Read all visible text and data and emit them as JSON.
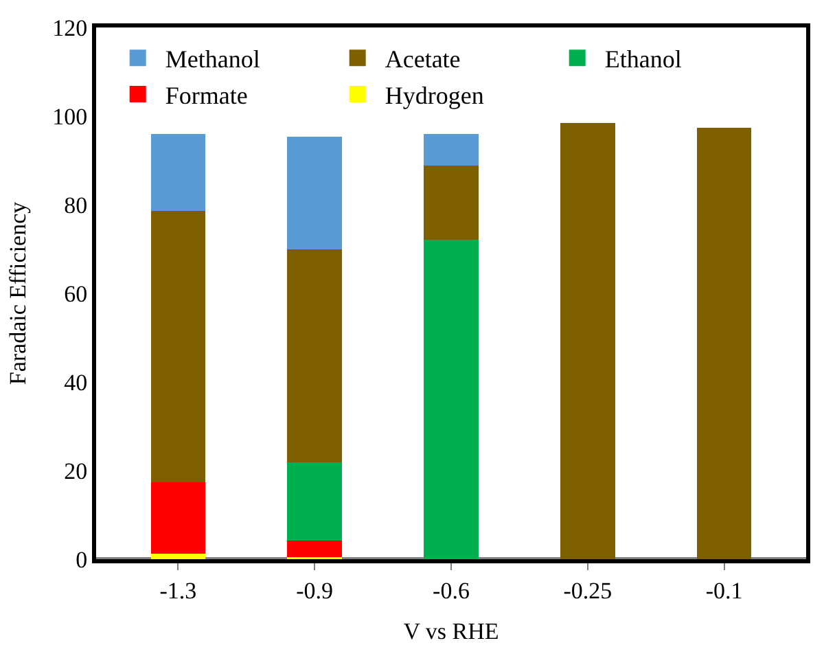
{
  "chart_data": {
    "type": "bar",
    "stacked": true,
    "xlabel": "V vs RHE",
    "ylabel": "Faradaic Efficiency",
    "categories": [
      "-1.3",
      "-0.9",
      "-0.6",
      "-0.25",
      "-0.1"
    ],
    "series": [
      {
        "name": "Hydrogen",
        "color": "#ffff00",
        "values": [
          1.2,
          0.5,
          0,
          0,
          0
        ]
      },
      {
        "name": "Formate",
        "color": "#ff0000",
        "values": [
          16.2,
          3.7,
          0,
          0,
          0
        ]
      },
      {
        "name": "Ethanol",
        "color": "#00b050",
        "values": [
          0,
          17.6,
          72.1,
          0,
          0
        ]
      },
      {
        "name": "Acetate",
        "color": "#7f6000",
        "values": [
          61.2,
          48.2,
          16.8,
          98.5,
          97.3
        ]
      },
      {
        "name": "Methanol",
        "color": "#5b9bd5",
        "values": [
          17.4,
          25.4,
          7.1,
          0,
          0
        ]
      }
    ],
    "ylim": [
      0,
      120
    ],
    "yticks": [
      0,
      20,
      40,
      60,
      80,
      100,
      120
    ],
    "legend": "top left"
  }
}
